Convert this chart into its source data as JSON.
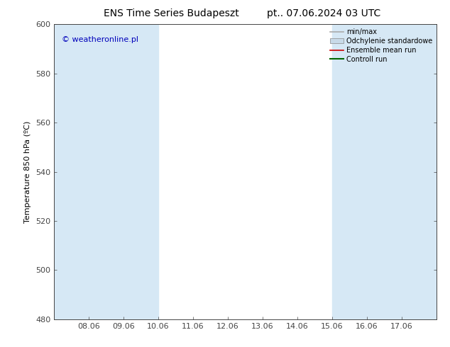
{
  "title_left": "ENS Time Series Budapeszt",
  "title_right": "pt.. 07.06.2024 03 UTC",
  "ylabel": "Temperature 850 hPa (ºC)",
  "ylim": [
    480,
    600
  ],
  "yticks": [
    480,
    500,
    520,
    540,
    560,
    580,
    600
  ],
  "x_labels": [
    "08.06",
    "09.06",
    "10.06",
    "11.06",
    "12.06",
    "13.06",
    "14.06",
    "15.06",
    "16.06",
    "17.06"
  ],
  "shade_color": "#d6e8f5",
  "bg_color": "#ffffff",
  "watermark": "© weatheronline.pl",
  "watermark_color": "#0000bb",
  "legend_items": [
    {
      "label": "min/max",
      "color": "#aaaaaa",
      "lw": 1.2,
      "type": "line"
    },
    {
      "label": "Odchylenie standardowe",
      "color": "#c8dae8",
      "lw": 8,
      "type": "bar"
    },
    {
      "label": "Ensemble mean run",
      "color": "#cc0000",
      "lw": 1.2,
      "type": "line"
    },
    {
      "label": "Controll run",
      "color": "#006600",
      "lw": 1.5,
      "type": "line"
    }
  ],
  "title_fontsize": 10,
  "tick_fontsize": 8,
  "ylabel_fontsize": 8,
  "watermark_fontsize": 8
}
